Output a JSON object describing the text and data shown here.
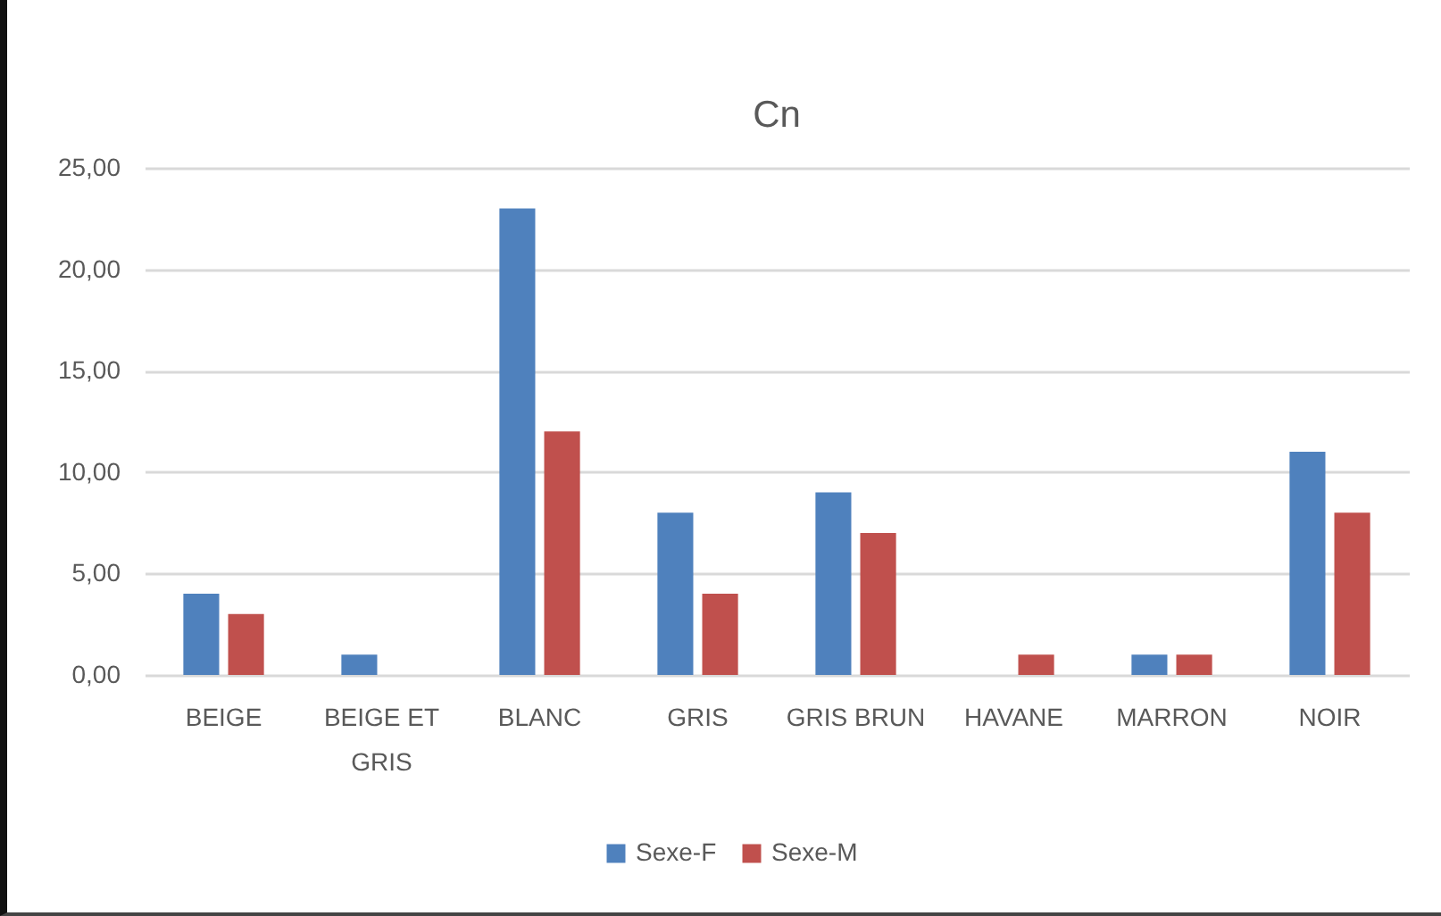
{
  "chart_data": {
    "type": "bar",
    "title": "Cn",
    "categories": [
      "BEIGE",
      "BEIGE ET GRIS",
      "BLANC",
      "GRIS",
      "GRIS BRUN",
      "HAVANE",
      "MARRON",
      "NOIR"
    ],
    "series": [
      {
        "name": "Sexe-F",
        "color": "#4f81bd",
        "values": [
          4,
          1,
          23,
          8,
          9,
          0,
          1,
          11
        ]
      },
      {
        "name": "Sexe-M",
        "color": "#c0504d",
        "values": [
          3,
          0,
          12,
          4,
          7,
          1,
          1,
          8
        ]
      }
    ],
    "ylim": [
      0,
      25
    ],
    "yticks": [
      {
        "value": 0,
        "label": "0,00"
      },
      {
        "value": 5,
        "label": "5,00"
      },
      {
        "value": 10,
        "label": "10,00"
      },
      {
        "value": 15,
        "label": "15,00"
      },
      {
        "value": 20,
        "label": "20,00"
      },
      {
        "value": 25,
        "label": "25,00"
      }
    ],
    "grid": "y",
    "legend": "bottom"
  }
}
